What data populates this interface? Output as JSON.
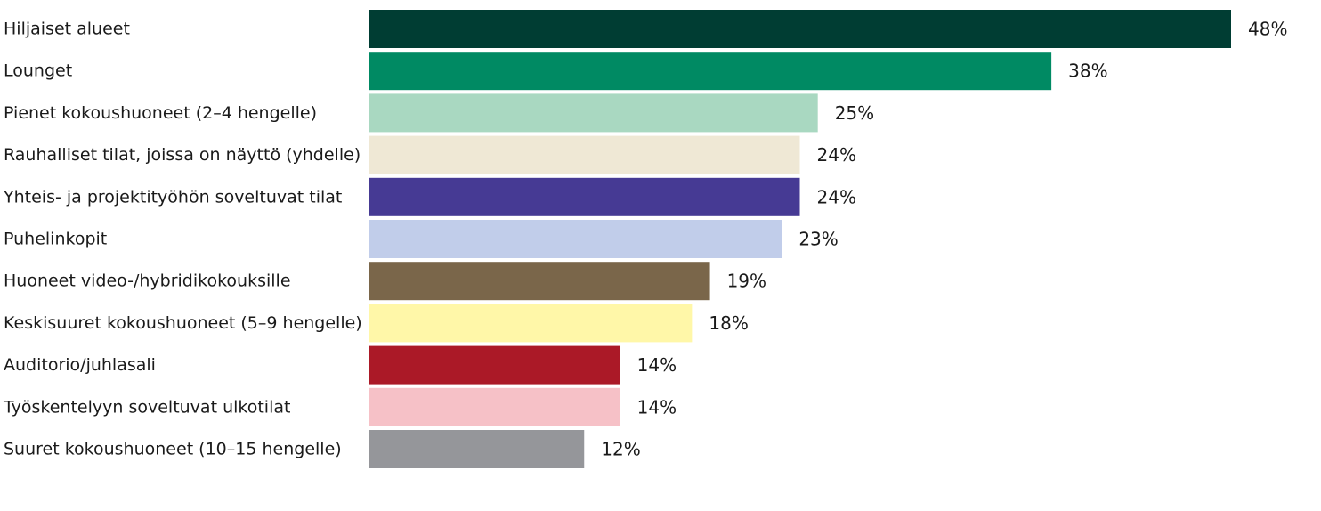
{
  "chart_data": {
    "type": "bar",
    "orientation": "horizontal",
    "title": "",
    "xlabel": "",
    "ylabel": "",
    "xlim": [
      0,
      48
    ],
    "grid": false,
    "legend": "none",
    "categories": [
      "Hiljaiset alueet",
      "Lounget",
      "Pienet kokoushuoneet (2–4 hengelle)",
      "Rauhalliset tilat, joissa on näyttö (yhdelle)",
      "Yhteis- ja projektityöhön soveltuvat tilat",
      "Puhelinkopit",
      "Huoneet video-/hybridikokouksille",
      "Keskisuuret kokoushuoneet (5–9 hengelle)",
      "Auditorio/juhlasali",
      "Työskentelyyn soveltuvat ulkotilat",
      "Suuret kokoushuoneet (10–15 hengelle)"
    ],
    "values": [
      48,
      38,
      25,
      24,
      24,
      23,
      19,
      18,
      14,
      14,
      12
    ],
    "value_labels": [
      "48%",
      "38%",
      "25%",
      "24%",
      "24%",
      "23%",
      "19%",
      "18%",
      "14%",
      "14%",
      "12%"
    ],
    "colors": [
      "#003d33",
      "#008a63",
      "#a9d8c1",
      "#efe8d5",
      "#463a94",
      "#c1cdea",
      "#7a664a",
      "#fff7a8",
      "#ab1927",
      "#f6c1c7",
      "#95969a"
    ]
  }
}
